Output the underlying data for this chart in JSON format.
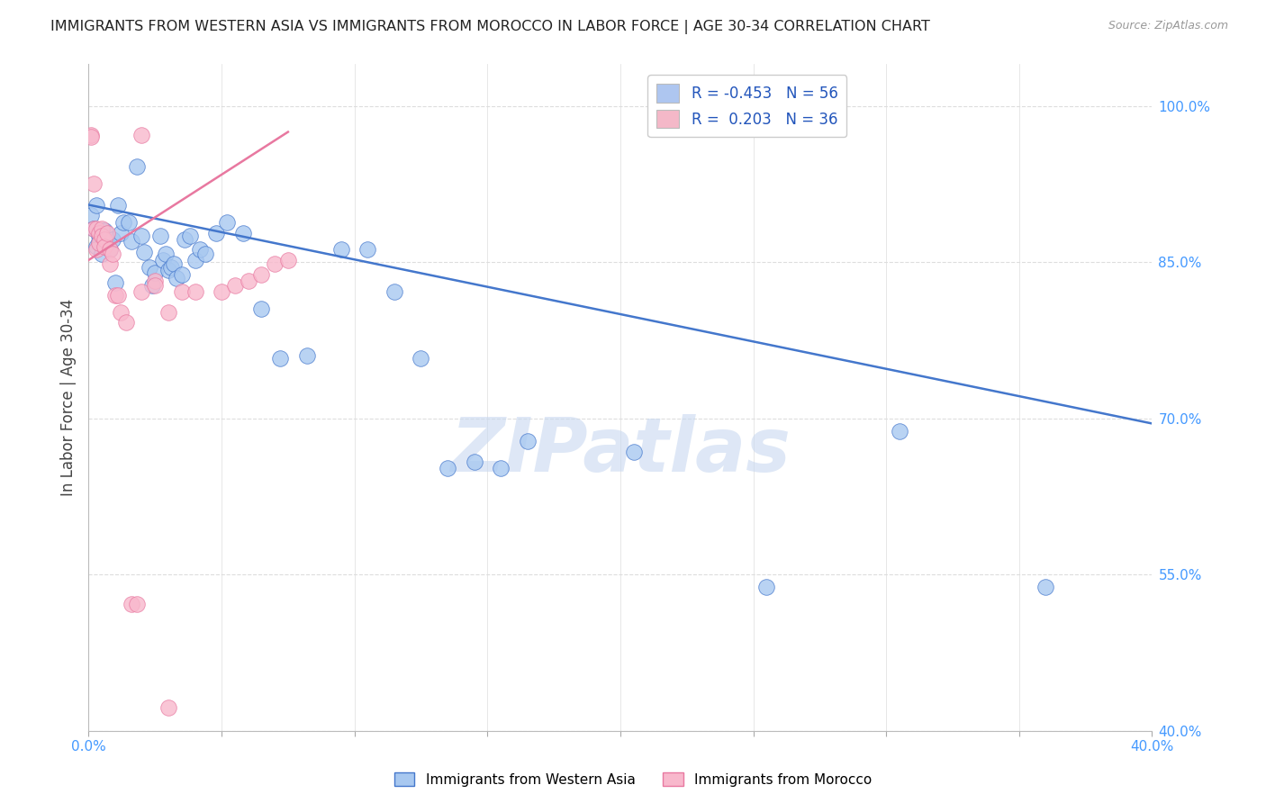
{
  "title": "IMMIGRANTS FROM WESTERN ASIA VS IMMIGRANTS FROM MOROCCO IN LABOR FORCE | AGE 30-34 CORRELATION CHART",
  "source": "Source: ZipAtlas.com",
  "ylabel": "In Labor Force | Age 30-34",
  "xlim": [
    0.0,
    0.4
  ],
  "ylim": [
    0.4,
    1.04
  ],
  "yticks": [
    0.4,
    0.55,
    0.7,
    0.85,
    1.0
  ],
  "ytick_labels": [
    "40.0%",
    "55.0%",
    "70.0%",
    "85.0%",
    "100.0%"
  ],
  "xticks": [
    0.0,
    0.05,
    0.1,
    0.15,
    0.2,
    0.25,
    0.3,
    0.35,
    0.4
  ],
  "xtick_labels": [
    "0.0%",
    "",
    "",
    "",
    "",
    "",
    "",
    "",
    "40.0%"
  ],
  "legend_entries": [
    {
      "label": "R = -0.453   N = 56",
      "color": "#aec6f0"
    },
    {
      "label": "R =  0.203   N = 36",
      "color": "#f4b8c8"
    }
  ],
  "western_asia_points": [
    [
      0.001,
      0.895
    ],
    [
      0.002,
      0.882
    ],
    [
      0.003,
      0.905
    ],
    [
      0.003,
      0.865
    ],
    [
      0.004,
      0.875
    ],
    [
      0.004,
      0.87
    ],
    [
      0.005,
      0.88
    ],
    [
      0.005,
      0.858
    ],
    [
      0.006,
      0.88
    ],
    [
      0.006,
      0.87
    ],
    [
      0.007,
      0.868
    ],
    [
      0.008,
      0.862
    ],
    [
      0.009,
      0.872
    ],
    [
      0.01,
      0.83
    ],
    [
      0.011,
      0.905
    ],
    [
      0.012,
      0.878
    ],
    [
      0.013,
      0.888
    ],
    [
      0.015,
      0.888
    ],
    [
      0.016,
      0.87
    ],
    [
      0.018,
      0.942
    ],
    [
      0.02,
      0.875
    ],
    [
      0.021,
      0.86
    ],
    [
      0.023,
      0.845
    ],
    [
      0.024,
      0.828
    ],
    [
      0.025,
      0.84
    ],
    [
      0.027,
      0.875
    ],
    [
      0.028,
      0.852
    ],
    [
      0.029,
      0.858
    ],
    [
      0.03,
      0.842
    ],
    [
      0.031,
      0.845
    ],
    [
      0.032,
      0.848
    ],
    [
      0.033,
      0.835
    ],
    [
      0.035,
      0.838
    ],
    [
      0.036,
      0.872
    ],
    [
      0.038,
      0.875
    ],
    [
      0.04,
      0.852
    ],
    [
      0.042,
      0.862
    ],
    [
      0.044,
      0.858
    ],
    [
      0.048,
      0.878
    ],
    [
      0.052,
      0.888
    ],
    [
      0.058,
      0.878
    ],
    [
      0.065,
      0.805
    ],
    [
      0.072,
      0.758
    ],
    [
      0.082,
      0.76
    ],
    [
      0.095,
      0.862
    ],
    [
      0.105,
      0.862
    ],
    [
      0.115,
      0.822
    ],
    [
      0.125,
      0.758
    ],
    [
      0.135,
      0.652
    ],
    [
      0.145,
      0.658
    ],
    [
      0.155,
      0.652
    ],
    [
      0.165,
      0.678
    ],
    [
      0.205,
      0.668
    ],
    [
      0.255,
      0.538
    ],
    [
      0.305,
      0.688
    ],
    [
      0.36,
      0.538
    ]
  ],
  "morocco_points": [
    [
      0.001,
      0.972
    ],
    [
      0.001,
      0.97
    ],
    [
      0.002,
      0.925
    ],
    [
      0.002,
      0.882
    ],
    [
      0.003,
      0.882
    ],
    [
      0.003,
      0.862
    ],
    [
      0.004,
      0.878
    ],
    [
      0.004,
      0.868
    ],
    [
      0.005,
      0.882
    ],
    [
      0.005,
      0.875
    ],
    [
      0.006,
      0.872
    ],
    [
      0.006,
      0.865
    ],
    [
      0.007,
      0.878
    ],
    [
      0.008,
      0.862
    ],
    [
      0.008,
      0.848
    ],
    [
      0.009,
      0.858
    ],
    [
      0.01,
      0.818
    ],
    [
      0.011,
      0.818
    ],
    [
      0.012,
      0.802
    ],
    [
      0.014,
      0.792
    ],
    [
      0.016,
      0.522
    ],
    [
      0.018,
      0.522
    ],
    [
      0.02,
      0.972
    ],
    [
      0.02,
      0.822
    ],
    [
      0.025,
      0.832
    ],
    [
      0.025,
      0.828
    ],
    [
      0.03,
      0.802
    ],
    [
      0.03,
      0.422
    ],
    [
      0.035,
      0.822
    ],
    [
      0.04,
      0.822
    ],
    [
      0.05,
      0.822
    ],
    [
      0.055,
      0.828
    ],
    [
      0.06,
      0.832
    ],
    [
      0.065,
      0.838
    ],
    [
      0.07,
      0.848
    ],
    [
      0.075,
      0.852
    ]
  ],
  "blue_line": {
    "x": [
      0.0,
      0.4
    ],
    "y": [
      0.905,
      0.695
    ]
  },
  "pink_line": {
    "x": [
      0.0,
      0.075
    ],
    "y": [
      0.852,
      0.975
    ]
  },
  "blue_scatter_color": "#a8c8f0",
  "pink_scatter_color": "#f8b8cc",
  "blue_line_color": "#4477cc",
  "pink_line_color": "#e878a0",
  "background_color": "#ffffff",
  "grid_color": "#dddddd",
  "title_color": "#222222",
  "tick_color": "#4499ff",
  "watermark": "ZIPatlas",
  "watermark_color": "#c8d8f0"
}
